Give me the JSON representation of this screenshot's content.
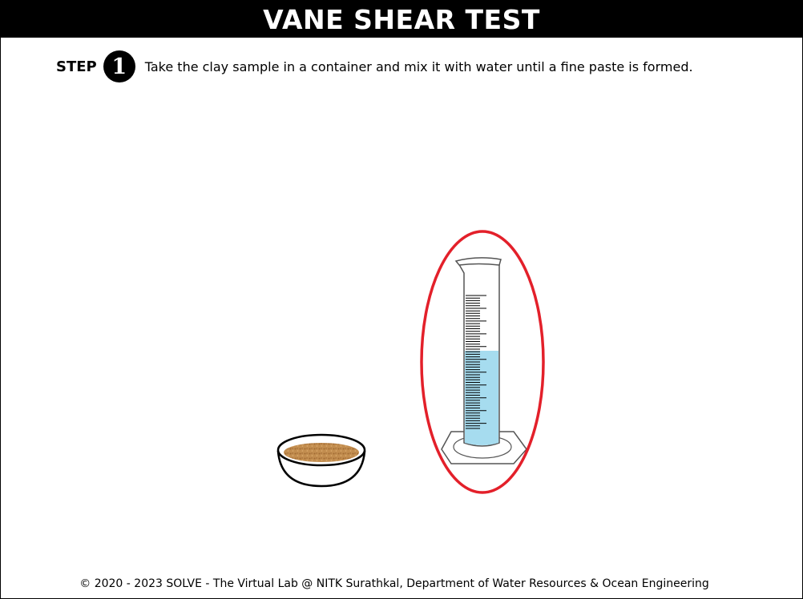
{
  "header": {
    "title": "VANE SHEAR TEST"
  },
  "step": {
    "label": "STEP",
    "number": "1",
    "instruction": "Take the clay sample in a container and mix it with water until a fine paste is formed."
  },
  "apparatus": {
    "bowl": {
      "icon": "clay-bowl-icon",
      "fill_color": "#c08a4a"
    },
    "cylinder": {
      "icon": "measuring-cylinder-icon",
      "water_color": "#a6dcef",
      "highlight_color": "#e3202a"
    }
  },
  "footer": {
    "copyright": "© 2020 - 2023 SOLVE - The Virtual Lab @ NITK Surathkal, Department of Water Resources & Ocean Engineering"
  }
}
